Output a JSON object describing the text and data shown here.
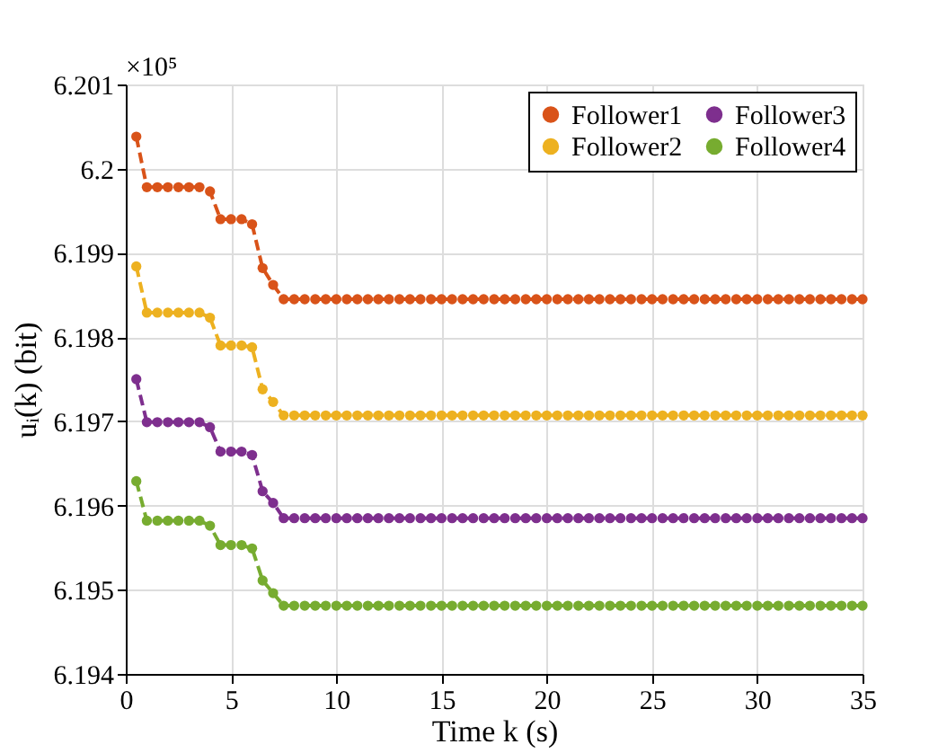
{
  "chart_data": {
    "type": "line",
    "xlabel": "Time k (s)",
    "ylabel": "uᵢ(k) (bit)",
    "annotations": [
      "×10⁵"
    ],
    "x": [
      0.5,
      1,
      1.5,
      2,
      2.5,
      3,
      3.5,
      4,
      4.5,
      5,
      5.5,
      6,
      6.5,
      7,
      7.5,
      8,
      8.5,
      9,
      9.5,
      10,
      10.5,
      11,
      11.5,
      12,
      12.5,
      13,
      13.5,
      14,
      14.5,
      15,
      15.5,
      16,
      16.5,
      17,
      17.5,
      18,
      18.5,
      19,
      19.5,
      20,
      20.5,
      21,
      21.5,
      22,
      22.5,
      23,
      23.5,
      24,
      24.5,
      25,
      25.5,
      26,
      26.5,
      27,
      27.5,
      28,
      28.5,
      29,
      29.5,
      30,
      30.5,
      31,
      31.5,
      32,
      32.5,
      33,
      33.5,
      34,
      34.5,
      35
    ],
    "series": [
      {
        "name": "Follower1",
        "color": "#d95319",
        "values": [
          6.20038,
          6.19978,
          6.19978,
          6.19978,
          6.19978,
          6.19978,
          6.19978,
          6.19973,
          6.1994,
          6.1994,
          6.1994,
          6.19934,
          6.19882,
          6.19862,
          6.19845,
          6.19845,
          6.19845,
          6.19845,
          6.19845,
          6.19845,
          6.19845,
          6.19845,
          6.19845,
          6.19845,
          6.19845,
          6.19845,
          6.19845,
          6.19845,
          6.19845,
          6.19845,
          6.19845,
          6.19845,
          6.19845,
          6.19845,
          6.19845,
          6.19845,
          6.19845,
          6.19845,
          6.19845,
          6.19845,
          6.19845,
          6.19845,
          6.19845,
          6.19845,
          6.19845,
          6.19845,
          6.19845,
          6.19845,
          6.19845,
          6.19845,
          6.19845,
          6.19845,
          6.19845,
          6.19845,
          6.19845,
          6.19845,
          6.19845,
          6.19845,
          6.19845,
          6.19845,
          6.19845,
          6.19845,
          6.19845,
          6.19845,
          6.19845,
          6.19845,
          6.19845,
          6.19845,
          6.19845,
          6.19845
        ]
      },
      {
        "name": "Follower2",
        "color": "#edb120",
        "values": [
          6.19884,
          6.19829,
          6.19829,
          6.19829,
          6.19829,
          6.19829,
          6.19829,
          6.19823,
          6.1979,
          6.1979,
          6.1979,
          6.19788,
          6.19738,
          6.19723,
          6.19707,
          6.19707,
          6.19707,
          6.19707,
          6.19707,
          6.19707,
          6.19707,
          6.19707,
          6.19707,
          6.19707,
          6.19707,
          6.19707,
          6.19707,
          6.19707,
          6.19707,
          6.19707,
          6.19707,
          6.19707,
          6.19707,
          6.19707,
          6.19707,
          6.19707,
          6.19707,
          6.19707,
          6.19707,
          6.19707,
          6.19707,
          6.19707,
          6.19707,
          6.19707,
          6.19707,
          6.19707,
          6.19707,
          6.19707,
          6.19707,
          6.19707,
          6.19707,
          6.19707,
          6.19707,
          6.19707,
          6.19707,
          6.19707,
          6.19707,
          6.19707,
          6.19707,
          6.19707,
          6.19707,
          6.19707,
          6.19707,
          6.19707,
          6.19707,
          6.19707,
          6.19707,
          6.19707,
          6.19707,
          6.19707
        ]
      },
      {
        "name": "Follower3",
        "color": "#7e2f8e",
        "values": [
          6.1975,
          6.19699,
          6.19699,
          6.19699,
          6.19699,
          6.19699,
          6.19699,
          6.19693,
          6.19664,
          6.19664,
          6.19664,
          6.1966,
          6.19617,
          6.19603,
          6.19585,
          6.19585,
          6.19585,
          6.19585,
          6.19585,
          6.19585,
          6.19585,
          6.19585,
          6.19585,
          6.19585,
          6.19585,
          6.19585,
          6.19585,
          6.19585,
          6.19585,
          6.19585,
          6.19585,
          6.19585,
          6.19585,
          6.19585,
          6.19585,
          6.19585,
          6.19585,
          6.19585,
          6.19585,
          6.19585,
          6.19585,
          6.19585,
          6.19585,
          6.19585,
          6.19585,
          6.19585,
          6.19585,
          6.19585,
          6.19585,
          6.19585,
          6.19585,
          6.19585,
          6.19585,
          6.19585,
          6.19585,
          6.19585,
          6.19585,
          6.19585,
          6.19585,
          6.19585,
          6.19585,
          6.19585,
          6.19585,
          6.19585,
          6.19585,
          6.19585,
          6.19585,
          6.19585,
          6.19585,
          6.19585
        ]
      },
      {
        "name": "Follower4",
        "color": "#77ac30",
        "values": [
          6.19629,
          6.19582,
          6.19582,
          6.19582,
          6.19582,
          6.19582,
          6.19582,
          6.19576,
          6.19553,
          6.19553,
          6.19553,
          6.19549,
          6.19511,
          6.19496,
          6.19481,
          6.19481,
          6.19481,
          6.19481,
          6.19481,
          6.19481,
          6.19481,
          6.19481,
          6.19481,
          6.19481,
          6.19481,
          6.19481,
          6.19481,
          6.19481,
          6.19481,
          6.19481,
          6.19481,
          6.19481,
          6.19481,
          6.19481,
          6.19481,
          6.19481,
          6.19481,
          6.19481,
          6.19481,
          6.19481,
          6.19481,
          6.19481,
          6.19481,
          6.19481,
          6.19481,
          6.19481,
          6.19481,
          6.19481,
          6.19481,
          6.19481,
          6.19481,
          6.19481,
          6.19481,
          6.19481,
          6.19481,
          6.19481,
          6.19481,
          6.19481,
          6.19481,
          6.19481,
          6.19481,
          6.19481,
          6.19481,
          6.19481,
          6.19481,
          6.19481,
          6.19481,
          6.19481,
          6.19481,
          6.19481
        ]
      }
    ],
    "xlim": [
      0,
      35
    ],
    "xticks": [
      0,
      5,
      10,
      15,
      20,
      25,
      30,
      35
    ],
    "ylim": [
      6.194,
      6.201
    ],
    "yticks": [
      6.194,
      6.195,
      6.196,
      6.197,
      6.198,
      6.199,
      6.2,
      6.201
    ],
    "grid": true,
    "legend": "top right",
    "marker": "circle",
    "line_style": "dashed"
  }
}
